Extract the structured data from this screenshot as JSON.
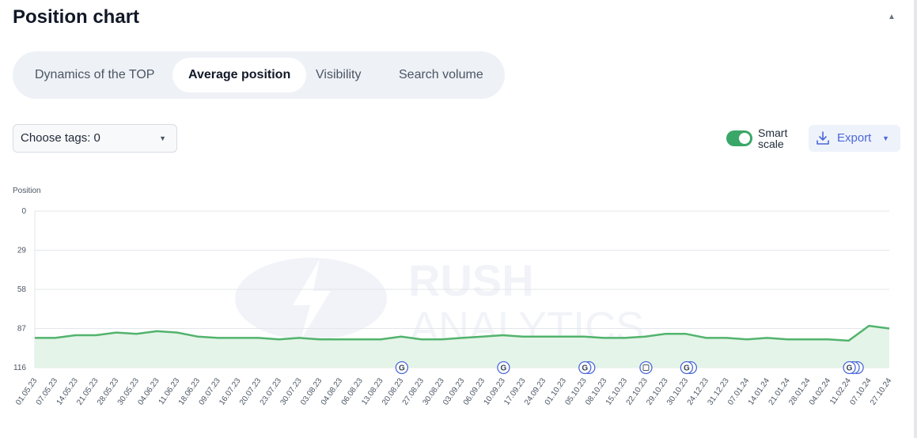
{
  "header": {
    "title": "Position chart"
  },
  "tabs": [
    {
      "label": "Dynamics of the TOP",
      "active": false
    },
    {
      "label": "Average position",
      "active": true
    },
    {
      "label": "Visibility",
      "active": false
    },
    {
      "label": "Search volume",
      "active": false
    }
  ],
  "controls": {
    "tags_label": "Choose tags: 0",
    "smart_scale_line1": "Smart",
    "smart_scale_line2": "scale",
    "smart_scale_on": true,
    "export_label": "Export"
  },
  "colors": {
    "line": "#52b36d",
    "fill": "#e4f4e8",
    "grid": "#e3e6ea",
    "accent": "#3aa768",
    "title_highlight": "#f6d04d",
    "link": "#4b68d8"
  },
  "icons": {
    "collapse": "chevron-up-icon",
    "tags_caret": "caret-down-icon",
    "export": "download-icon",
    "export_caret": "caret-down-icon",
    "event_marker": "google-update-icon",
    "note_marker": "note-icon"
  },
  "watermark": {
    "line1": "RUSH",
    "line2": "ANALYTICS"
  },
  "chart_data": {
    "type": "area",
    "ylabel": "Position",
    "y_reversed": true,
    "ylim": [
      0,
      116
    ],
    "yticks": [
      0,
      29,
      58,
      87,
      116
    ],
    "grid": true,
    "legend": "none",
    "x": [
      "01.05.23",
      "07.05.23",
      "14.05.23",
      "21.05.23",
      "28.05.23",
      "30.05.23",
      "04.06.23",
      "11.06.23",
      "18.06.23",
      "09.07.23",
      "16.07.23",
      "20.07.23",
      "23.07.23",
      "30.07.23",
      "03.08.23",
      "04.08.23",
      "06.08.23",
      "13.08.23",
      "20.08.23",
      "27.08.23",
      "30.08.23",
      "03.09.23",
      "06.09.23",
      "10.09.23",
      "17.09.23",
      "24.09.23",
      "01.10.23",
      "05.10.23",
      "08.10.23",
      "15.10.23",
      "22.10.23",
      "29.10.23",
      "30.10.23",
      "24.12.23",
      "31.12.23",
      "07.01.24",
      "14.01.24",
      "21.01.24",
      "28.01.24",
      "04.02.24",
      "11.02.24",
      "07.10.24",
      "27.10.24"
    ],
    "series": [
      {
        "name": "",
        "values": [
          94,
          94,
          92,
          92,
          90,
          91,
          89,
          90,
          93,
          94,
          94,
          94,
          95,
          94,
          95,
          95,
          95,
          95,
          93,
          95,
          95,
          94,
          93,
          92,
          93,
          93,
          93,
          93,
          94,
          94,
          93,
          91,
          91,
          94,
          94,
          95,
          94,
          95,
          95,
          95,
          96,
          85,
          87
        ]
      }
    ],
    "markers": [
      {
        "x": "20.08.23",
        "type": "google",
        "count": 1
      },
      {
        "x": "10.09.23",
        "type": "google",
        "count": 1
      },
      {
        "x": "05.10.23",
        "type": "google",
        "count": 2
      },
      {
        "x": "22.10.23",
        "type": "note",
        "count": 1
      },
      {
        "x": "30.10.23",
        "type": "google",
        "count": 2
      },
      {
        "x": "11.02.24",
        "type": "google",
        "count": 3
      }
    ]
  }
}
